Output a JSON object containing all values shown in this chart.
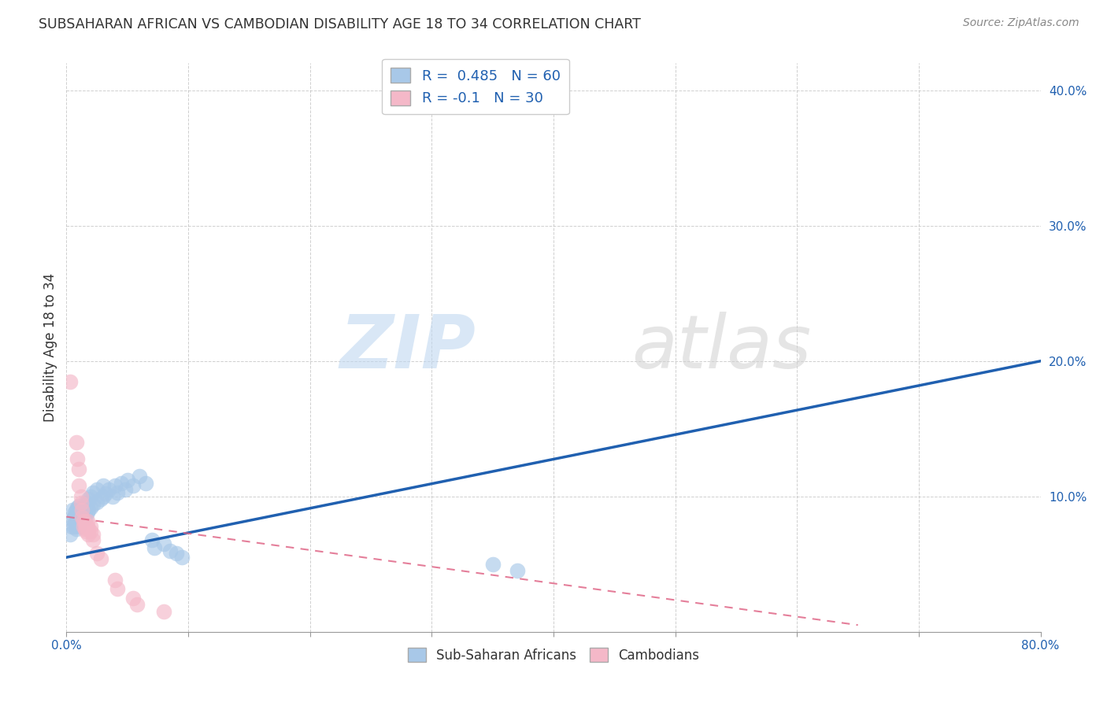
{
  "title": "SUBSAHARAN AFRICAN VS CAMBODIAN DISABILITY AGE 18 TO 34 CORRELATION CHART",
  "source": "Source: ZipAtlas.com",
  "ylabel": "Disability Age 18 to 34",
  "xlim": [
    0,
    0.8
  ],
  "ylim": [
    0,
    0.42
  ],
  "xticks": [
    0.0,
    0.1,
    0.2,
    0.3,
    0.4,
    0.5,
    0.6,
    0.7,
    0.8
  ],
  "yticks": [
    0.0,
    0.1,
    0.2,
    0.3,
    0.4
  ],
  "xtick_labels_bottom": [
    "0.0%",
    "",
    "",
    "",
    "",
    "",
    "",
    "",
    "80.0%"
  ],
  "ytick_labels": [
    "",
    "10.0%",
    "20.0%",
    "30.0%",
    "40.0%"
  ],
  "legend_bottom_labels": [
    "Sub-Saharan Africans",
    "Cambodians"
  ],
  "blue_R": 0.485,
  "blue_N": 60,
  "pink_R": -0.1,
  "pink_N": 30,
  "blue_color": "#a8c8e8",
  "pink_color": "#f4b8c8",
  "blue_line_color": "#2060b0",
  "pink_line_color": "#e06888",
  "watermark_zip": "ZIP",
  "watermark_atlas": "atlas",
  "blue_line_x": [
    0.0,
    0.8
  ],
  "blue_line_y": [
    0.055,
    0.2
  ],
  "pink_line_x": [
    0.0,
    0.65
  ],
  "pink_line_y": [
    0.085,
    0.005
  ],
  "blue_scatter": [
    [
      0.003,
      0.072
    ],
    [
      0.004,
      0.078
    ],
    [
      0.005,
      0.083
    ],
    [
      0.005,
      0.09
    ],
    [
      0.006,
      0.078
    ],
    [
      0.006,
      0.085
    ],
    [
      0.007,
      0.08
    ],
    [
      0.007,
      0.088
    ],
    [
      0.008,
      0.076
    ],
    [
      0.008,
      0.082
    ],
    [
      0.008,
      0.09
    ],
    [
      0.009,
      0.085
    ],
    [
      0.009,
      0.092
    ],
    [
      0.01,
      0.078
    ],
    [
      0.01,
      0.085
    ],
    [
      0.01,
      0.093
    ],
    [
      0.011,
      0.08
    ],
    [
      0.011,
      0.087
    ],
    [
      0.012,
      0.082
    ],
    [
      0.012,
      0.09
    ],
    [
      0.013,
      0.085
    ],
    [
      0.013,
      0.092
    ],
    [
      0.014,
      0.083
    ],
    [
      0.014,
      0.09
    ],
    [
      0.015,
      0.087
    ],
    [
      0.015,
      0.095
    ],
    [
      0.016,
      0.085
    ],
    [
      0.016,
      0.092
    ],
    [
      0.017,
      0.088
    ],
    [
      0.017,
      0.095
    ],
    [
      0.018,
      0.09
    ],
    [
      0.018,
      0.098
    ],
    [
      0.02,
      0.092
    ],
    [
      0.02,
      0.1
    ],
    [
      0.022,
      0.094
    ],
    [
      0.022,
      0.103
    ],
    [
      0.025,
      0.096
    ],
    [
      0.025,
      0.105
    ],
    [
      0.028,
      0.098
    ],
    [
      0.03,
      0.1
    ],
    [
      0.03,
      0.108
    ],
    [
      0.032,
      0.102
    ],
    [
      0.035,
      0.105
    ],
    [
      0.038,
      0.1
    ],
    [
      0.04,
      0.108
    ],
    [
      0.042,
      0.103
    ],
    [
      0.045,
      0.11
    ],
    [
      0.048,
      0.105
    ],
    [
      0.05,
      0.112
    ],
    [
      0.055,
      0.108
    ],
    [
      0.06,
      0.115
    ],
    [
      0.065,
      0.11
    ],
    [
      0.07,
      0.068
    ],
    [
      0.072,
      0.062
    ],
    [
      0.08,
      0.065
    ],
    [
      0.085,
      0.06
    ],
    [
      0.09,
      0.058
    ],
    [
      0.095,
      0.055
    ],
    [
      0.35,
      0.05
    ],
    [
      0.37,
      0.045
    ]
  ],
  "pink_scatter": [
    [
      0.003,
      0.185
    ],
    [
      0.008,
      0.14
    ],
    [
      0.009,
      0.128
    ],
    [
      0.01,
      0.12
    ],
    [
      0.01,
      0.108
    ],
    [
      0.012,
      0.1
    ],
    [
      0.012,
      0.095
    ],
    [
      0.013,
      0.09
    ],
    [
      0.013,
      0.085
    ],
    [
      0.014,
      0.082
    ],
    [
      0.014,
      0.078
    ],
    [
      0.015,
      0.08
    ],
    [
      0.015,
      0.076
    ],
    [
      0.016,
      0.078
    ],
    [
      0.016,
      0.074
    ],
    [
      0.017,
      0.082
    ],
    [
      0.017,
      0.078
    ],
    [
      0.018,
      0.076
    ],
    [
      0.018,
      0.072
    ],
    [
      0.02,
      0.078
    ],
    [
      0.02,
      0.074
    ],
    [
      0.022,
      0.072
    ],
    [
      0.022,
      0.068
    ],
    [
      0.025,
      0.058
    ],
    [
      0.028,
      0.054
    ],
    [
      0.04,
      0.038
    ],
    [
      0.042,
      0.032
    ],
    [
      0.055,
      0.025
    ],
    [
      0.058,
      0.02
    ],
    [
      0.08,
      0.015
    ]
  ]
}
